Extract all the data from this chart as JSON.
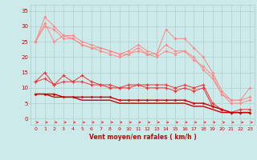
{
  "x": [
    0,
    1,
    2,
    3,
    4,
    5,
    6,
    7,
    8,
    9,
    10,
    11,
    12,
    13,
    14,
    15,
    16,
    17,
    18,
    19,
    20,
    21,
    22,
    23
  ],
  "line1": [
    25,
    33,
    30,
    27,
    27,
    25,
    24,
    23,
    22,
    21,
    22,
    24,
    22,
    21,
    29,
    26,
    26,
    23,
    20,
    15,
    9,
    6,
    6,
    10
  ],
  "line2": [
    25,
    30,
    29,
    26,
    26,
    24,
    23,
    23,
    22,
    21,
    21,
    23,
    21,
    21,
    24,
    22,
    22,
    20,
    16,
    13,
    8,
    5,
    5,
    6
  ],
  "line3": [
    25,
    31,
    25,
    27,
    26,
    24,
    23,
    22,
    21,
    20,
    21,
    22,
    21,
    20,
    22,
    21,
    22,
    19,
    17,
    14,
    8,
    6,
    6,
    7
  ],
  "line4": [
    12,
    15,
    11,
    14,
    12,
    14,
    12,
    11,
    11,
    10,
    11,
    11,
    11,
    11,
    11,
    10,
    11,
    10,
    11,
    5,
    3,
    2,
    3,
    3
  ],
  "line5": [
    12,
    13,
    11,
    12,
    12,
    12,
    11,
    11,
    10,
    10,
    10,
    11,
    10,
    10,
    10,
    9,
    10,
    9,
    10,
    4,
    3,
    2,
    2,
    2
  ],
  "line6": [
    8,
    8,
    8,
    7,
    7,
    7,
    7,
    7,
    7,
    6,
    6,
    6,
    6,
    6,
    6,
    6,
    6,
    5,
    5,
    4,
    3,
    2,
    2,
    2
  ],
  "line7": [
    8,
    8,
    7,
    7,
    7,
    6,
    6,
    6,
    6,
    5,
    5,
    5,
    5,
    5,
    5,
    5,
    5,
    4,
    4,
    3,
    2,
    2,
    2,
    2
  ],
  "bg_color": "#cceaea",
  "grid_color": "#aacccc",
  "light_red": "#ff8888",
  "mid_red": "#ee3333",
  "dark_red": "#cc0000",
  "xlabel": "Vent moyen/en rafales ( km/h )",
  "ylim": [
    -2,
    37
  ],
  "xlim": [
    -0.5,
    23.5
  ],
  "yticks": [
    0,
    5,
    10,
    15,
    20,
    25,
    30,
    35
  ],
  "xticks": [
    0,
    1,
    2,
    3,
    4,
    5,
    6,
    7,
    8,
    9,
    10,
    11,
    12,
    13,
    14,
    15,
    16,
    17,
    18,
    19,
    20,
    21,
    22,
    23
  ]
}
